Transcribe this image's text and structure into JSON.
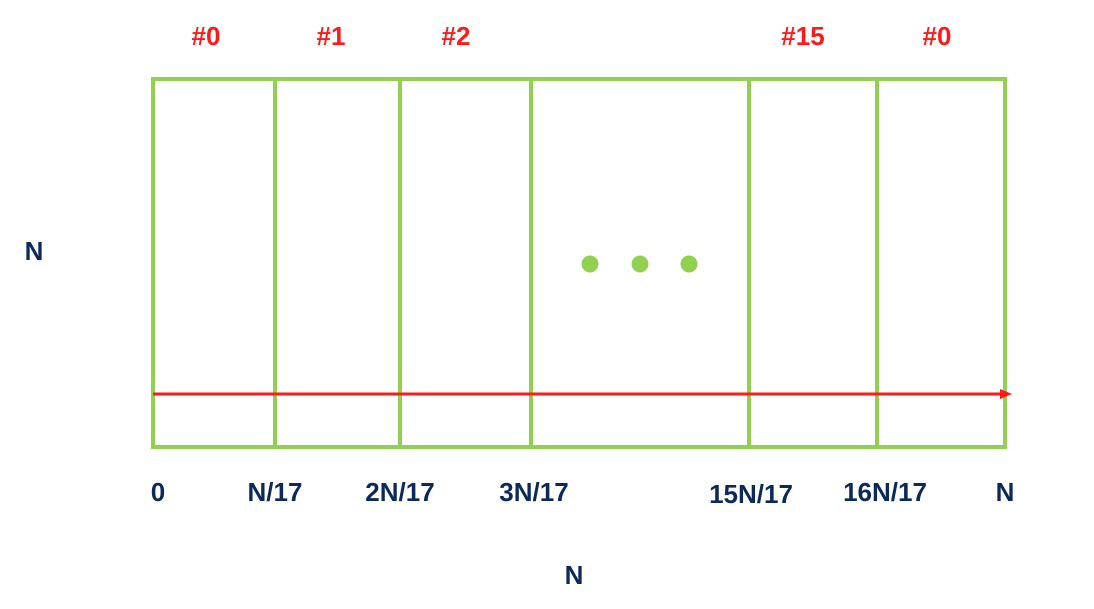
{
  "colors": {
    "grid": "#92d050",
    "arrow": "#ff1a1a",
    "partition_label": "#ff1a1a",
    "axis_label": "#0b2a5b"
  },
  "partitions": [
    {
      "label": "#0"
    },
    {
      "label": "#1"
    },
    {
      "label": "#2"
    },
    {
      "label": ""
    },
    {
      "label": "#15"
    },
    {
      "label": "#0"
    }
  ],
  "ellipsis": "• • •",
  "ticks": [
    "0",
    "N/17",
    "2N/17",
    "3N/17",
    "15N/17",
    "16N/17",
    "N"
  ],
  "left_label": "N",
  "bottom_label": "N"
}
